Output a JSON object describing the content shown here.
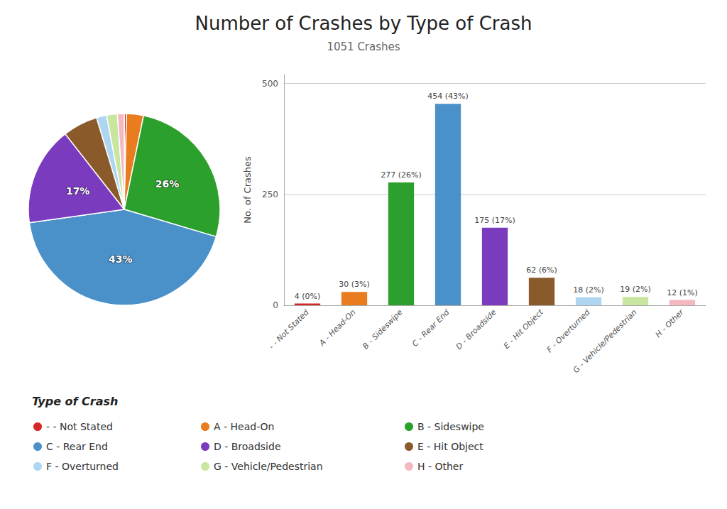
{
  "chart_data": [
    {
      "type": "pie",
      "title": "Number of Crashes by Type of Crash",
      "subtitle": "1051 Crashes",
      "categories": [
        "- - Not Stated",
        "A - Head-On",
        "B - Sideswipe",
        "C - Rear End",
        "D - Broadside",
        "E - Hit Object",
        "F - Overturned",
        "G - Vehicle/Pedestrian",
        "H - Other"
      ],
      "values": [
        4,
        30,
        277,
        454,
        175,
        62,
        18,
        19,
        12
      ],
      "value_labels": [
        null,
        null,
        "26%",
        "43%",
        "17%",
        null,
        null,
        null,
        null
      ],
      "colors": [
        "#d62728",
        "#e87c1e",
        "#2ca02c",
        "#4a90c9",
        "#7b3bbf",
        "#8b5a2b",
        "#aed6f1",
        "#c8e6a0",
        "#f4b8c0"
      ],
      "legend_title": "Type of Crash",
      "legend": "bottom"
    },
    {
      "type": "bar",
      "categories": [
        "- - Not Stated",
        "A - Head-On",
        "B - Sideswipe",
        "C - Rear End",
        "D - Broadside",
        "E - Hit Object",
        "F - Overturned",
        "G - Vehicle/Pedestrian",
        "H - Other"
      ],
      "values": [
        4,
        30,
        277,
        454,
        175,
        62,
        18,
        19,
        12
      ],
      "value_labels": [
        "4 (0%)",
        "30 (3%)",
        "277 (26%)",
        "454 (43%)",
        "175 (17%)",
        "62 (6%)",
        "18 (2%)",
        "19 (2%)",
        "12 (1%)"
      ],
      "colors": [
        "#d62728",
        "#e87c1e",
        "#2ca02c",
        "#4a90c9",
        "#7b3bbf",
        "#8b5a2b",
        "#aed6f1",
        "#c8e6a0",
        "#f4b8c0"
      ],
      "ylabel": "No. of Crashes",
      "ylim": [
        0,
        520
      ],
      "yticks": [
        0,
        250,
        500
      ],
      "grid": true,
      "data_labels": true
    }
  ]
}
